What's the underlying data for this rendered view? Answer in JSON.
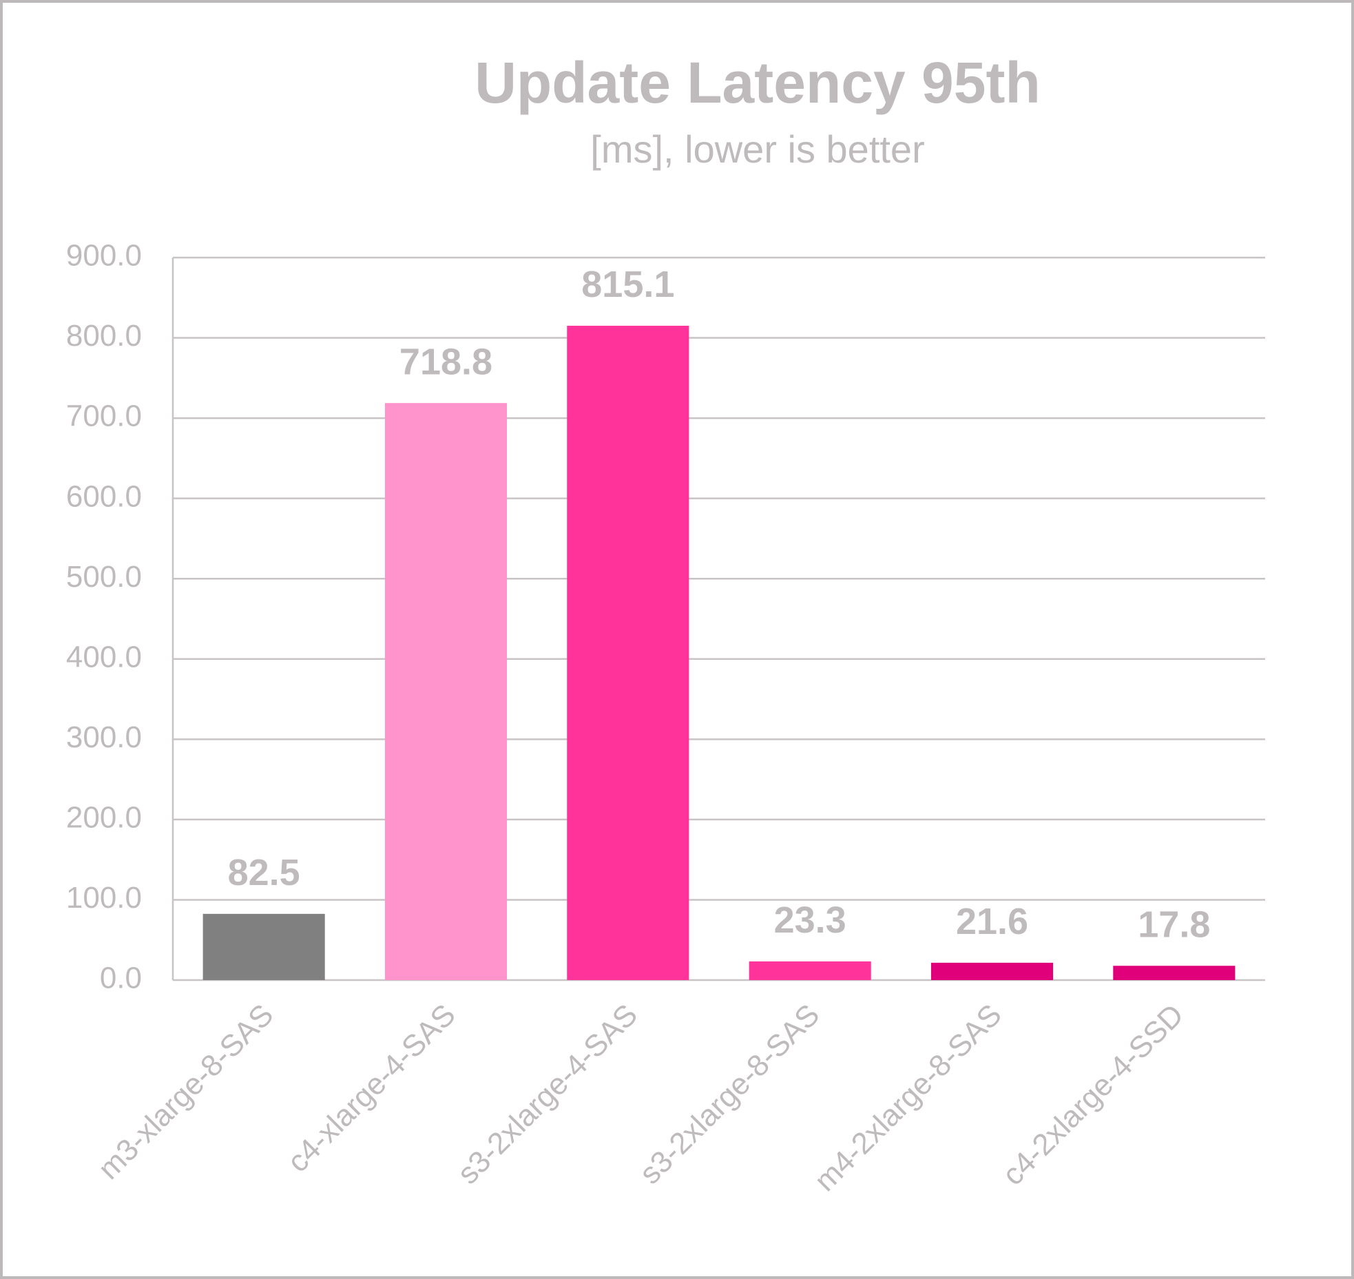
{
  "chart_data": {
    "type": "bar",
    "title": "Update Latency 95th",
    "subtitle": "[ms], lower is better",
    "categories": [
      "m3-xlarge-8-SAS",
      "c4-xlarge-4-SAS",
      "s3-2xlarge-4-SAS",
      "s3-2xlarge-8-SAS",
      "m4-2xlarge-8-SAS",
      "c4-2xlarge-4-SSD"
    ],
    "values": [
      82.5,
      718.8,
      815.1,
      23.3,
      21.6,
      17.8
    ],
    "colors": [
      "#808080",
      "#ff94cc",
      "#ff3399",
      "#ff3399",
      "#e0007a",
      "#e0007a"
    ],
    "ylim": [
      0,
      900
    ],
    "yticks": [
      {
        "value": 0,
        "label": "0.0"
      },
      {
        "value": 100,
        "label": "100.0"
      },
      {
        "value": 200,
        "label": "200.0"
      },
      {
        "value": 300,
        "label": "300.0"
      },
      {
        "value": 400,
        "label": "400.0"
      },
      {
        "value": 500,
        "label": "500.0"
      },
      {
        "value": 600,
        "label": "600.0"
      },
      {
        "value": 700,
        "label": "700.0"
      },
      {
        "value": 800,
        "label": "800.0"
      },
      {
        "value": 900,
        "label": "900.0"
      }
    ],
    "grid": true
  }
}
